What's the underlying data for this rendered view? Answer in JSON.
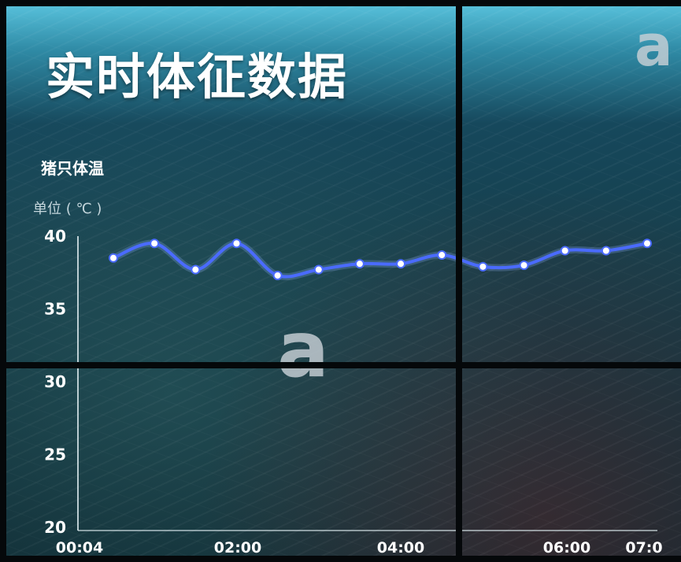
{
  "page": {
    "title": "实时体征数据",
    "watermark": "a"
  },
  "chart_data": {
    "type": "line",
    "title": "猪只体温",
    "ylabel": "单位 ( ℃ )",
    "xlabel": "",
    "ylim": [
      20,
      40
    ],
    "yticks": [
      "40",
      "35",
      "30",
      "25",
      "20"
    ],
    "xtick_labels": [
      "00:04",
      "02:00",
      "04:00",
      "06:00",
      "07:0"
    ],
    "x": [
      "00:30",
      "01:00",
      "01:30",
      "02:00",
      "02:30",
      "03:00",
      "03:30",
      "04:00",
      "04:30",
      "05:00",
      "05:30",
      "06:00",
      "06:30",
      "07:00"
    ],
    "series": [
      {
        "values": [
          38.5,
          39.5,
          37.7,
          39.5,
          37.3,
          37.7,
          38.1,
          38.1,
          38.7,
          37.9,
          38.0,
          39.0,
          39.0,
          39.5
        ],
        "color": "#4a6bff"
      }
    ],
    "axis_color": "#d8e6ea",
    "grid": false
  }
}
